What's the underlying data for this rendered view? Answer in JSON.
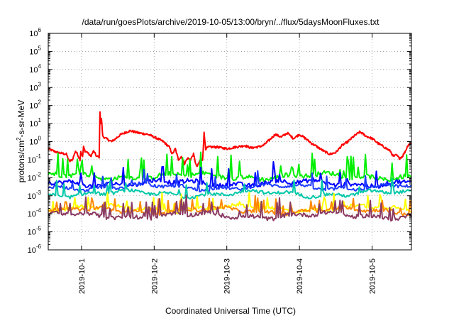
{
  "chart_data": {
    "type": "line",
    "title": "/data/run/goesPlots/archive/2019-10-05/13:00/bryn/../flux/5daysMoonFluxes.txt",
    "xlabel": "Coordinated Universal Time (UTC)",
    "ylabel": {
      "prefix": "protons/cm",
      "sup": "2",
      "suffix": "-s-sr-MeV"
    },
    "y_scale": "log",
    "ylim": [
      1e-06,
      1000000.0
    ],
    "y_ticks": [
      {
        "base": "10",
        "exp": "-6",
        "value": 1e-06
      },
      {
        "base": "10",
        "exp": "-5",
        "value": 1e-05
      },
      {
        "base": "10",
        "exp": "-4",
        "value": 0.0001
      },
      {
        "base": "10",
        "exp": "-3",
        "value": 0.001
      },
      {
        "base": "10",
        "exp": "-2",
        "value": 0.01
      },
      {
        "base": "10",
        "exp": "-1",
        "value": 0.1
      },
      {
        "base": "10",
        "exp": "0",
        "value": 1
      },
      {
        "base": "10",
        "exp": "1",
        "value": 10
      },
      {
        "base": "10",
        "exp": "2",
        "value": 100
      },
      {
        "base": "10",
        "exp": "3",
        "value": 1000.0
      },
      {
        "base": "10",
        "exp": "4",
        "value": 10000.0
      },
      {
        "base": "10",
        "exp": "5",
        "value": 100000.0
      },
      {
        "base": "10",
        "exp": "6",
        "value": 1000000.0
      }
    ],
    "xlim": [
      "2019-09-30T13:00",
      "2019-10-05T13:00"
    ],
    "x_ticks": [
      {
        "label": "2019-10-1",
        "value": "2019-10-01T00:00"
      },
      {
        "label": "2019-10-2",
        "value": "2019-10-02T00:00"
      },
      {
        "label": "2019-10-3",
        "value": "2019-10-03T00:00"
      },
      {
        "label": "2019-10-4",
        "value": "2019-10-04T00:00"
      },
      {
        "label": "2019-10-5",
        "value": "2019-10-05T00:00"
      }
    ],
    "grid": true,
    "legend": "none",
    "series": [
      {
        "color": "#ff0000",
        "kind": "smooth",
        "amp": 0.6,
        "spike_prob": 0.01,
        "spike_amp": 0.4,
        "points": [
          [
            "2019-09-30T13:00",
            0.4
          ],
          [
            "2019-09-30T16:00",
            0.25
          ],
          [
            "2019-09-30T19:00",
            0.2
          ],
          [
            "2019-09-30T20:00",
            0.08
          ],
          [
            "2019-09-30T21:00",
            0.1
          ],
          [
            "2019-09-30T22:00",
            0.3
          ],
          [
            "2019-09-30T22:40",
            0.2
          ],
          [
            "2019-09-30T23:00",
            0.15
          ],
          [
            "2019-09-30T23:30",
            0.1
          ],
          [
            "2019-09-30T23:45",
            0.3
          ],
          [
            "2019-10-01T00:00",
            0.2
          ],
          [
            "2019-10-01T00:20",
            0.15
          ],
          [
            "2019-10-01T00:40",
            0.5
          ],
          [
            "2019-10-01T01:10",
            0.3
          ],
          [
            "2019-10-01T02:00",
            0.25
          ],
          [
            "2019-10-01T03:00",
            0.15
          ],
          [
            "2019-10-01T04:00",
            0.3
          ],
          [
            "2019-10-01T05:00",
            0.15
          ],
          [
            "2019-10-01T05:50",
            0.14
          ],
          [
            "2019-10-01T06:05",
            50
          ],
          [
            "2019-10-01T06:20",
            10
          ],
          [
            "2019-10-01T06:35",
            20
          ],
          [
            "2019-10-01T07:00",
            2
          ],
          [
            "2019-10-01T08:00",
            1.5
          ],
          [
            "2019-10-01T10:00",
            1.0
          ],
          [
            "2019-10-01T13:00",
            2.5
          ],
          [
            "2019-10-01T16:00",
            4.0
          ],
          [
            "2019-10-01T19:00",
            3.0
          ],
          [
            "2019-10-01T22:00",
            2.5
          ],
          [
            "2019-10-02T01:00",
            1.5
          ],
          [
            "2019-10-02T03:00",
            1.0
          ],
          [
            "2019-10-02T05:00",
            0.5
          ],
          [
            "2019-10-02T06:00",
            0.2
          ],
          [
            "2019-10-02T07:00",
            0.4
          ],
          [
            "2019-10-02T08:00",
            0.1
          ],
          [
            "2019-10-02T09:00",
            0.15
          ],
          [
            "2019-10-02T10:00",
            0.06
          ],
          [
            "2019-10-02T11:00",
            0.12
          ],
          [
            "2019-10-02T12:00",
            0.1
          ],
          [
            "2019-10-02T13:00",
            0.2
          ],
          [
            "2019-10-02T14:00",
            0.04
          ],
          [
            "2019-10-02T14:30",
            0.05
          ],
          [
            "2019-10-02T15:00",
            0.08
          ],
          [
            "2019-10-02T16:00",
            0.1
          ],
          [
            "2019-10-02T16:30",
            3.0
          ],
          [
            "2019-10-02T17:00",
            0.4
          ],
          [
            "2019-10-02T18:00",
            0.5
          ],
          [
            "2019-10-02T21:00",
            0.5
          ],
          [
            "2019-10-03T00:00",
            0.4
          ],
          [
            "2019-10-03T03:00",
            0.5
          ],
          [
            "2019-10-03T06:00",
            0.6
          ],
          [
            "2019-10-03T08:00",
            0.45
          ],
          [
            "2019-10-03T10:00",
            0.5
          ],
          [
            "2019-10-03T12:00",
            0.6
          ],
          [
            "2019-10-03T14:00",
            1.2
          ],
          [
            "2019-10-03T16:00",
            2.5
          ],
          [
            "2019-10-03T18:00",
            1.8
          ],
          [
            "2019-10-03T20:00",
            3.0
          ],
          [
            "2019-10-03T22:00",
            1.5
          ],
          [
            "2019-10-04T00:00",
            2.5
          ],
          [
            "2019-10-04T02:00",
            1.5
          ],
          [
            "2019-10-04T04:00",
            0.8
          ],
          [
            "2019-10-04T06:00",
            0.5
          ],
          [
            "2019-10-04T08:00",
            0.3
          ],
          [
            "2019-10-04T10:00",
            0.2
          ],
          [
            "2019-10-04T12:00",
            0.25
          ],
          [
            "2019-10-04T14:00",
            0.6
          ],
          [
            "2019-10-04T16:00",
            1.0
          ],
          [
            "2019-10-04T18:00",
            2.0
          ],
          [
            "2019-10-04T20:00",
            3.5
          ],
          [
            "2019-10-04T22:00",
            2.0
          ],
          [
            "2019-10-05T00:00",
            1.5
          ],
          [
            "2019-10-05T02:00",
            0.8
          ],
          [
            "2019-10-05T04:00",
            0.5
          ],
          [
            "2019-10-05T06:00",
            0.3
          ],
          [
            "2019-10-05T07:00",
            0.15
          ],
          [
            "2019-10-05T08:00",
            0.18
          ],
          [
            "2019-10-05T09:00",
            0.12
          ],
          [
            "2019-10-05T10:00",
            0.15
          ],
          [
            "2019-10-05T11:00",
            0.3
          ],
          [
            "2019-10-05T12:00",
            0.7
          ],
          [
            "2019-10-05T13:00",
            0.8
          ]
        ]
      },
      {
        "color": "#00ee00",
        "kind": "noisy",
        "base": 0.012,
        "spike_prob": 0.1,
        "spike_amp": 0.9,
        "amp": 0.25
      },
      {
        "color": "#0000ff",
        "kind": "noisy",
        "base": 0.005,
        "spike_prob": 0.08,
        "spike_amp": 0.7,
        "amp": 0.25
      },
      {
        "color": "#1f3cff",
        "kind": "noisy",
        "base": 0.003,
        "spike_prob": 0.07,
        "spike_amp": 0.6,
        "amp": 0.18
      },
      {
        "color": "#00c8a8",
        "kind": "noisy",
        "base": 0.0013,
        "spike_prob": 0.06,
        "spike_amp": 0.6,
        "amp": 0.18
      },
      {
        "color": "#ffff00",
        "kind": "noisy",
        "base": 0.0002,
        "spike_prob": 0.12,
        "spike_amp": 0.6,
        "amp": 0.2
      },
      {
        "color": "#ff8800",
        "kind": "noisy",
        "base": 0.00015,
        "spike_prob": 0.12,
        "spike_amp": 0.6,
        "amp": 0.2
      },
      {
        "color": "#8b3a62",
        "kind": "noisy",
        "base": 8e-05,
        "spike_prob": 0.14,
        "spike_amp": 0.7,
        "amp": 0.22
      }
    ]
  }
}
